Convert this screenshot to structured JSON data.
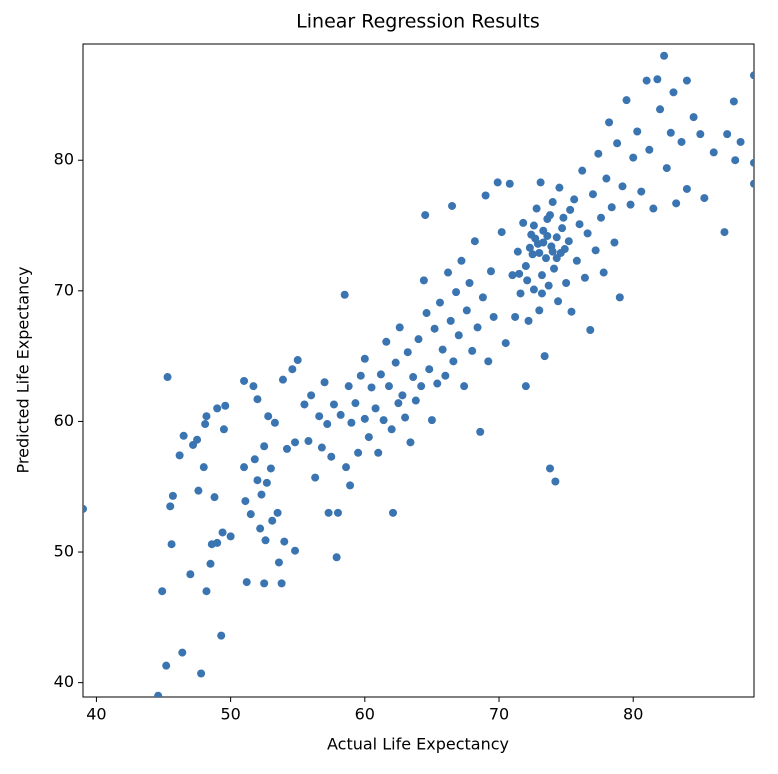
{
  "chart_data": {
    "type": "scatter",
    "title": "Linear Regression Results",
    "x_label": "Actual Life Expectancy",
    "y_label": "Predicted Life Expectancy",
    "color": "#3a74b1",
    "grid": false,
    "xlim": [
      39.0,
      89.0
    ],
    "ylim": [
      38.9,
      88.9
    ],
    "xticks": [
      40,
      50,
      60,
      70,
      80
    ],
    "yticks": [
      40,
      50,
      60,
      70,
      80
    ],
    "x": [
      39.0,
      44.6,
      44.9,
      45.2,
      45.3,
      45.5,
      45.6,
      45.7,
      46.2,
      46.4,
      46.5,
      47.0,
      47.2,
      47.5,
      47.6,
      47.8,
      48.0,
      48.1,
      48.2,
      48.2,
      48.5,
      48.6,
      48.8,
      49.0,
      49.0,
      49.3,
      49.4,
      49.5,
      49.6,
      50.0,
      51.0,
      51.0,
      51.1,
      51.2,
      51.5,
      51.7,
      51.8,
      52.0,
      52.0,
      52.2,
      52.3,
      52.5,
      52.5,
      52.6,
      52.7,
      52.8,
      53.0,
      53.1,
      53.3,
      53.5,
      53.6,
      53.8,
      53.9,
      54.0,
      54.2,
      54.6,
      54.8,
      54.8,
      55.0,
      55.5,
      55.8,
      56.0,
      56.3,
      56.6,
      56.8,
      57.0,
      57.2,
      57.3,
      57.5,
      57.7,
      57.9,
      58.0,
      58.2,
      58.5,
      58.6,
      58.8,
      58.9,
      59.0,
      59.3,
      59.5,
      59.7,
      60.0,
      60.0,
      60.3,
      60.5,
      60.8,
      61.0,
      61.2,
      61.4,
      61.6,
      61.8,
      62.0,
      62.1,
      62.3,
      62.5,
      62.6,
      62.8,
      63.0,
      63.2,
      63.4,
      63.6,
      63.8,
      64.0,
      64.2,
      64.4,
      64.5,
      64.6,
      64.8,
      65.0,
      65.2,
      65.4,
      65.6,
      65.8,
      66.0,
      66.2,
      66.4,
      66.5,
      66.6,
      66.8,
      67.0,
      67.2,
      67.4,
      67.6,
      67.8,
      68.0,
      68.2,
      68.4,
      68.6,
      68.8,
      69.0,
      69.2,
      69.4,
      69.6,
      69.9,
      70.2,
      70.5,
      70.8,
      71.0,
      71.2,
      71.4,
      71.6,
      71.8,
      72.0,
      72.0,
      72.2,
      72.4,
      72.5,
      72.6,
      72.8,
      72.9,
      73.0,
      73.1,
      73.2,
      73.3,
      73.4,
      73.5,
      73.6,
      73.7,
      73.8,
      73.9,
      74.0,
      74.1,
      74.2,
      74.3,
      74.4,
      74.5,
      74.6,
      74.8,
      75.0,
      75.2,
      75.4,
      75.6,
      75.8,
      76.0,
      76.2,
      76.4,
      76.6,
      76.8,
      77.0,
      77.2,
      77.4,
      77.6,
      77.8,
      78.0,
      78.2,
      78.4,
      78.6,
      78.8,
      79.0,
      79.2,
      79.5,
      79.8,
      80.0,
      80.3,
      80.6,
      81.0,
      81.2,
      81.5,
      81.8,
      82.0,
      82.3,
      82.5,
      82.8,
      83.0,
      83.2,
      83.6,
      84.0,
      84.0,
      84.5,
      85.0,
      85.3,
      86.0,
      86.8,
      87.0,
      87.5,
      87.6,
      88.0,
      89.0,
      89.0,
      89.0,
      72.3,
      72.7,
      73.0,
      73.3,
      73.6,
      74.0,
      74.3,
      72.6,
      73.8,
      74.7,
      71.5,
      72.1,
      73.2,
      74.9,
      75.3
    ],
    "y": [
      53.3,
      39.0,
      47.0,
      41.3,
      63.4,
      53.5,
      50.6,
      54.3,
      57.4,
      42.3,
      58.9,
      48.3,
      58.2,
      58.6,
      54.7,
      40.7,
      56.5,
      59.8,
      60.4,
      47.0,
      49.1,
      50.6,
      54.2,
      50.7,
      61.0,
      43.6,
      51.5,
      59.4,
      61.2,
      51.2,
      63.1,
      56.5,
      53.9,
      47.7,
      52.9,
      62.7,
      57.1,
      55.5,
      61.7,
      51.8,
      54.4,
      47.6,
      58.1,
      50.9,
      55.3,
      60.4,
      56.4,
      52.4,
      59.9,
      53.0,
      49.2,
      47.6,
      63.2,
      50.8,
      57.9,
      64.0,
      58.4,
      50.1,
      64.7,
      61.3,
      58.5,
      62.0,
      55.7,
      60.4,
      58.0,
      63.0,
      59.8,
      53.0,
      57.3,
      61.3,
      49.6,
      53.0,
      60.5,
      69.7,
      56.5,
      62.7,
      55.1,
      59.9,
      61.4,
      57.6,
      63.5,
      60.2,
      64.8,
      58.8,
      62.6,
      61.0,
      57.6,
      63.6,
      60.1,
      66.1,
      62.7,
      59.4,
      53.0,
      64.5,
      61.4,
      67.2,
      62.0,
      60.3,
      65.3,
      58.4,
      63.4,
      61.6,
      66.3,
      62.7,
      70.8,
      75.8,
      68.3,
      64.0,
      60.1,
      67.1,
      62.9,
      69.1,
      65.5,
      63.5,
      71.4,
      67.7,
      76.5,
      64.6,
      69.9,
      66.6,
      72.3,
      62.7,
      68.5,
      70.6,
      65.4,
      73.8,
      67.2,
      59.2,
      69.5,
      77.3,
      64.6,
      71.5,
      68.0,
      78.3,
      74.5,
      66.0,
      78.2,
      71.2,
      68.0,
      73.0,
      69.8,
      75.2,
      62.7,
      71.9,
      67.7,
      74.3,
      72.8,
      70.1,
      76.3,
      73.6,
      68.5,
      78.3,
      71.2,
      74.6,
      65.0,
      72.5,
      75.5,
      70.4,
      56.4,
      73.4,
      76.8,
      71.7,
      55.4,
      74.1,
      69.2,
      77.9,
      72.9,
      75.6,
      70.6,
      73.8,
      68.4,
      77.0,
      72.3,
      75.1,
      79.2,
      71.0,
      74.4,
      67.0,
      77.4,
      73.1,
      80.5,
      75.6,
      71.4,
      78.6,
      82.9,
      76.4,
      73.7,
      81.3,
      69.5,
      78.0,
      84.6,
      76.6,
      80.2,
      82.2,
      77.6,
      86.1,
      80.8,
      76.3,
      86.2,
      83.9,
      88.0,
      79.4,
      82.1,
      85.2,
      76.7,
      81.4,
      77.8,
      86.1,
      83.3,
      82.0,
      77.1,
      80.6,
      74.5,
      82.0,
      84.5,
      80.0,
      81.4,
      86.5,
      79.8,
      78.2,
      73.3,
      74.0,
      72.9,
      73.7,
      74.2,
      73.0,
      72.5,
      75.0,
      75.8,
      74.8,
      71.3,
      70.8,
      69.8,
      73.2,
      76.2
    ]
  }
}
